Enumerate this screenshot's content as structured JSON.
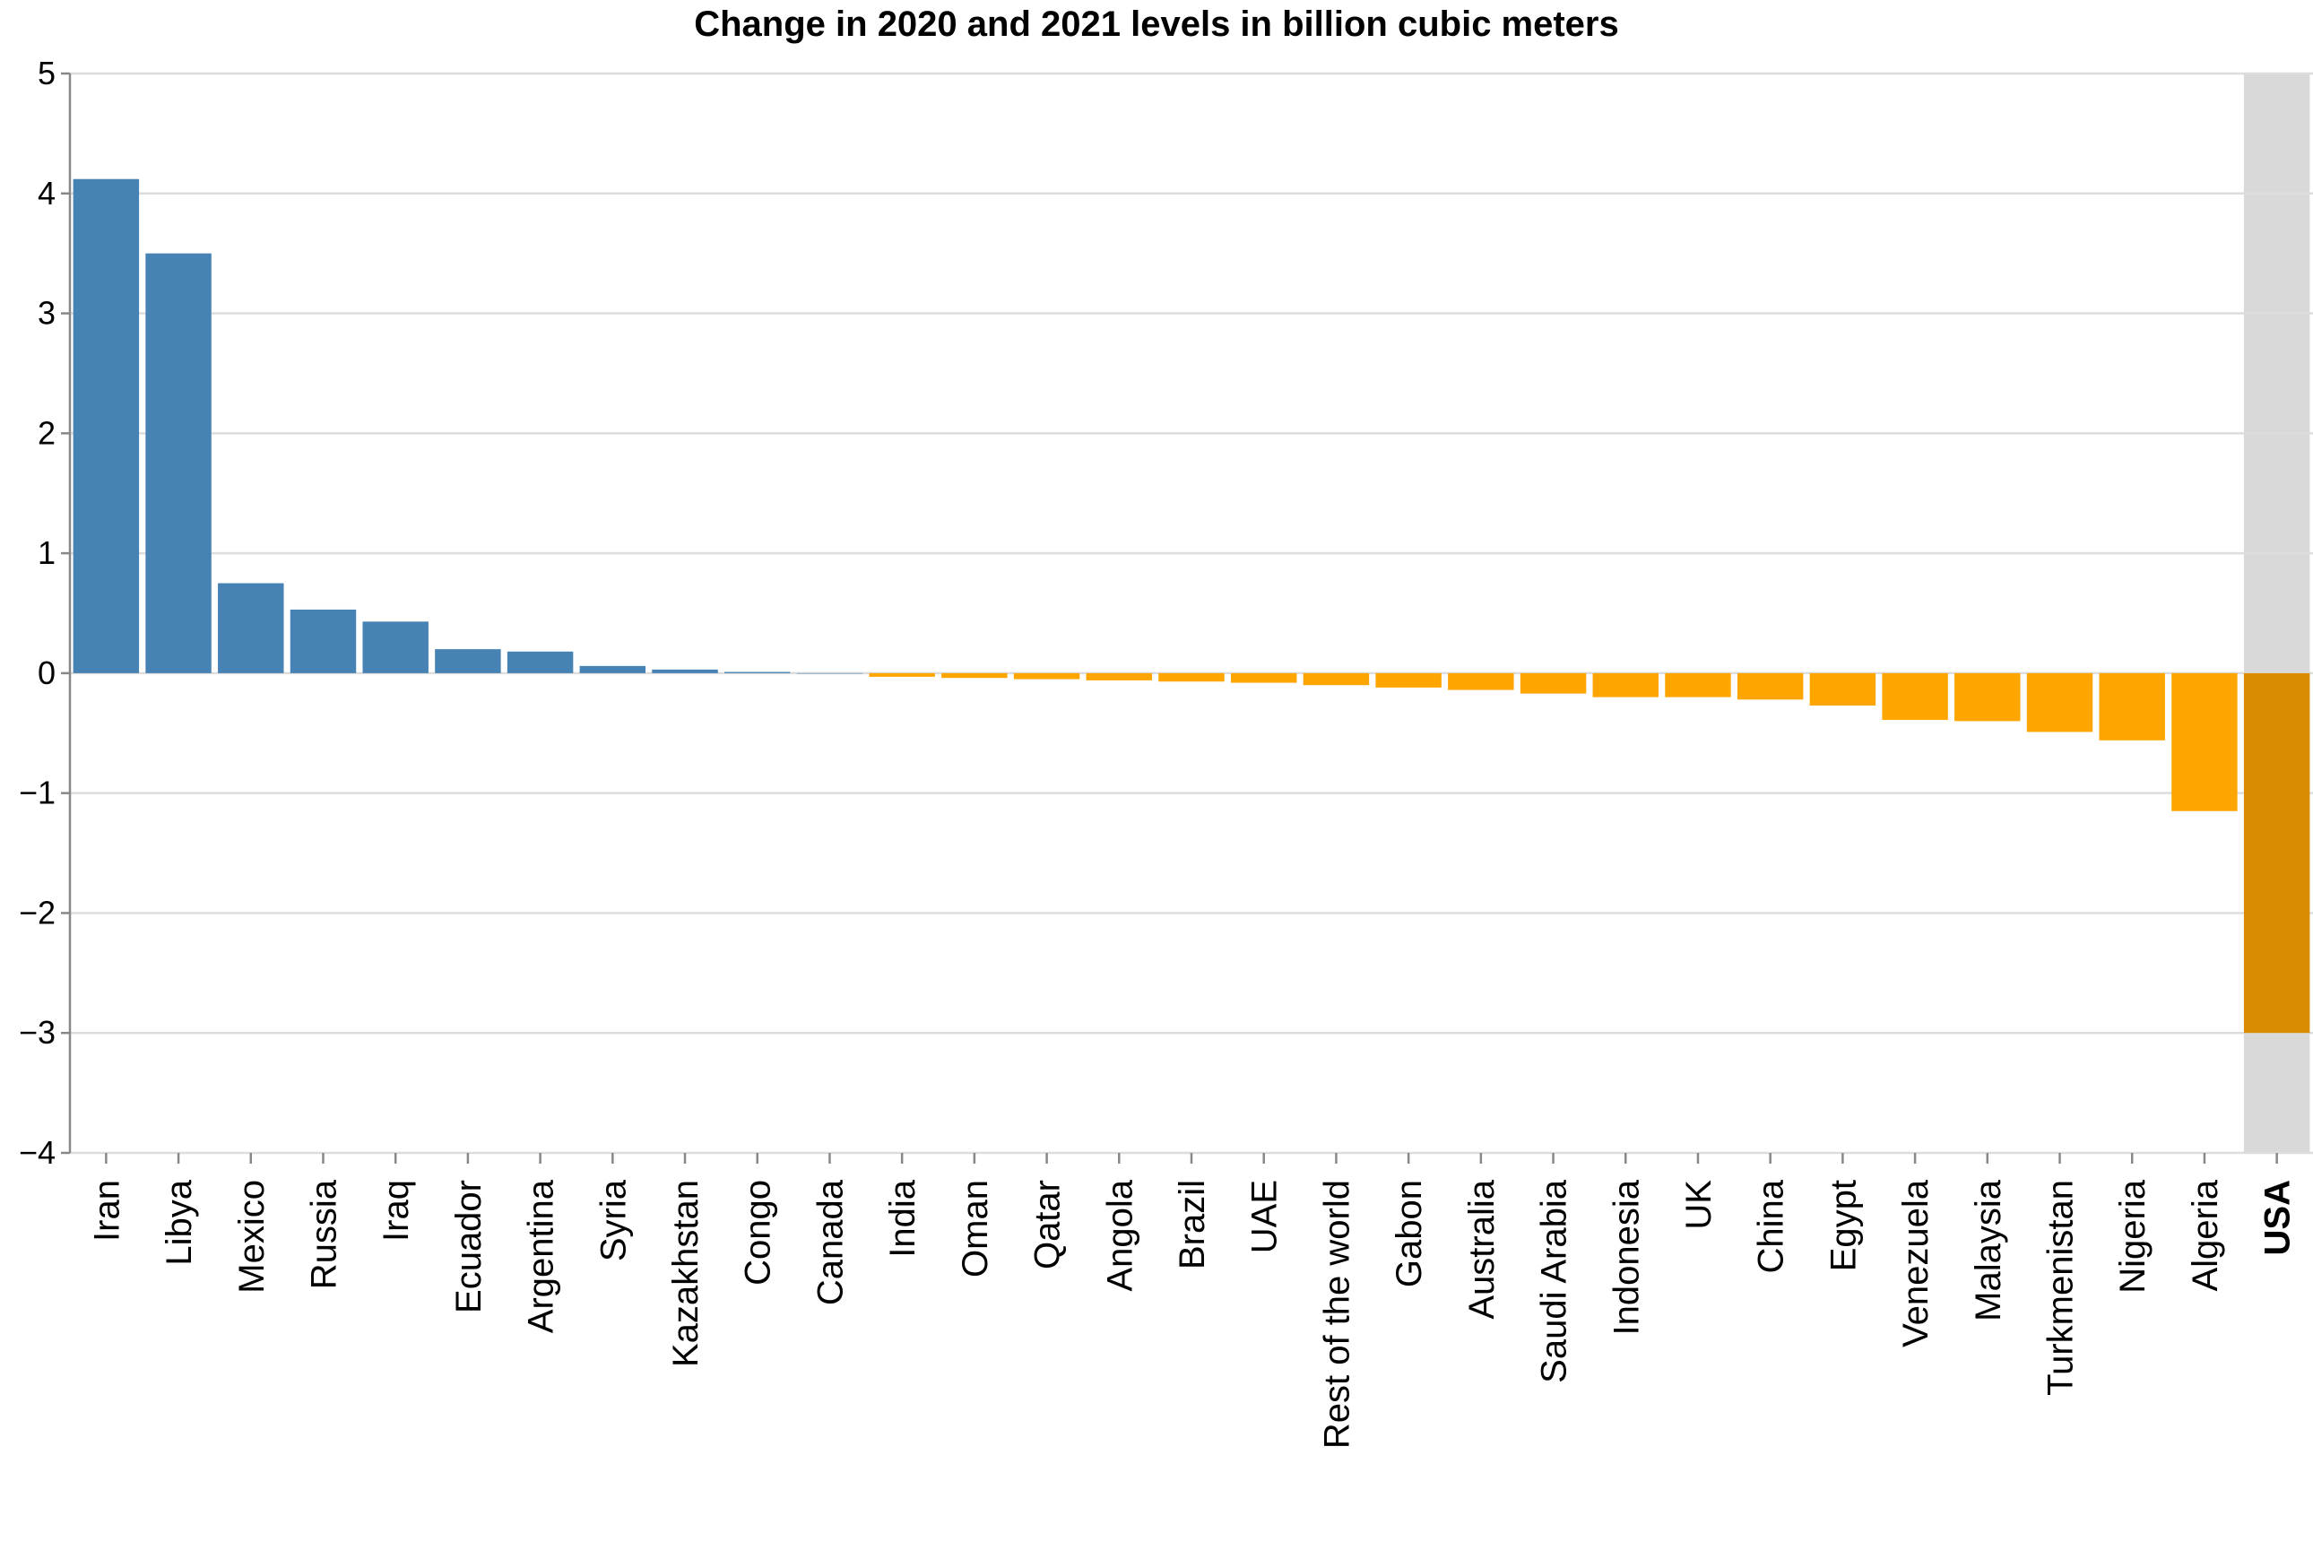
{
  "chart_data": {
    "type": "bar",
    "title": "Change in 2020 and 2021 levels in billion cubic meters",
    "xlabel": "",
    "ylabel": "",
    "ylim": [
      -4,
      5
    ],
    "yticks": [
      5,
      4,
      3,
      2,
      1,
      0,
      -1,
      -2,
      -3,
      -4
    ],
    "ytick_labels": [
      "5",
      "4",
      "3",
      "2",
      "1",
      "0",
      "−1",
      "−2",
      "−3",
      "−4"
    ],
    "grid": true,
    "categories": [
      "Iran",
      "Libya",
      "Mexico",
      "Russia",
      "Iraq",
      "Ecuador",
      "Argentina",
      "Syria",
      "Kazakhstan",
      "Congo",
      "Canada",
      "India",
      "Oman",
      "Qatar",
      "Angola",
      "Brazil",
      "UAE",
      "Rest of the world",
      "Gabon",
      "Australia",
      "Saudi Arabia",
      "Indonesia",
      "UK",
      "China",
      "Egypt",
      "Venezuela",
      "Malaysia",
      "Turkmenistan",
      "Nigeria",
      "Algeria",
      "USA"
    ],
    "values": [
      4.12,
      3.5,
      0.75,
      0.53,
      0.43,
      0.2,
      0.18,
      0.06,
      0.03,
      0.01,
      0.0,
      -0.03,
      -0.04,
      -0.05,
      -0.06,
      -0.07,
      -0.08,
      -0.1,
      -0.12,
      -0.14,
      -0.17,
      -0.2,
      -0.2,
      -0.22,
      -0.27,
      -0.39,
      -0.4,
      -0.49,
      -0.56,
      -1.15,
      -3.0
    ],
    "highlight": "USA",
    "colors": {
      "positive": "#4682b4",
      "negative": "#ffa500",
      "highlight_bar": "#d98c00",
      "highlight_band": "#d9d9d9"
    }
  }
}
